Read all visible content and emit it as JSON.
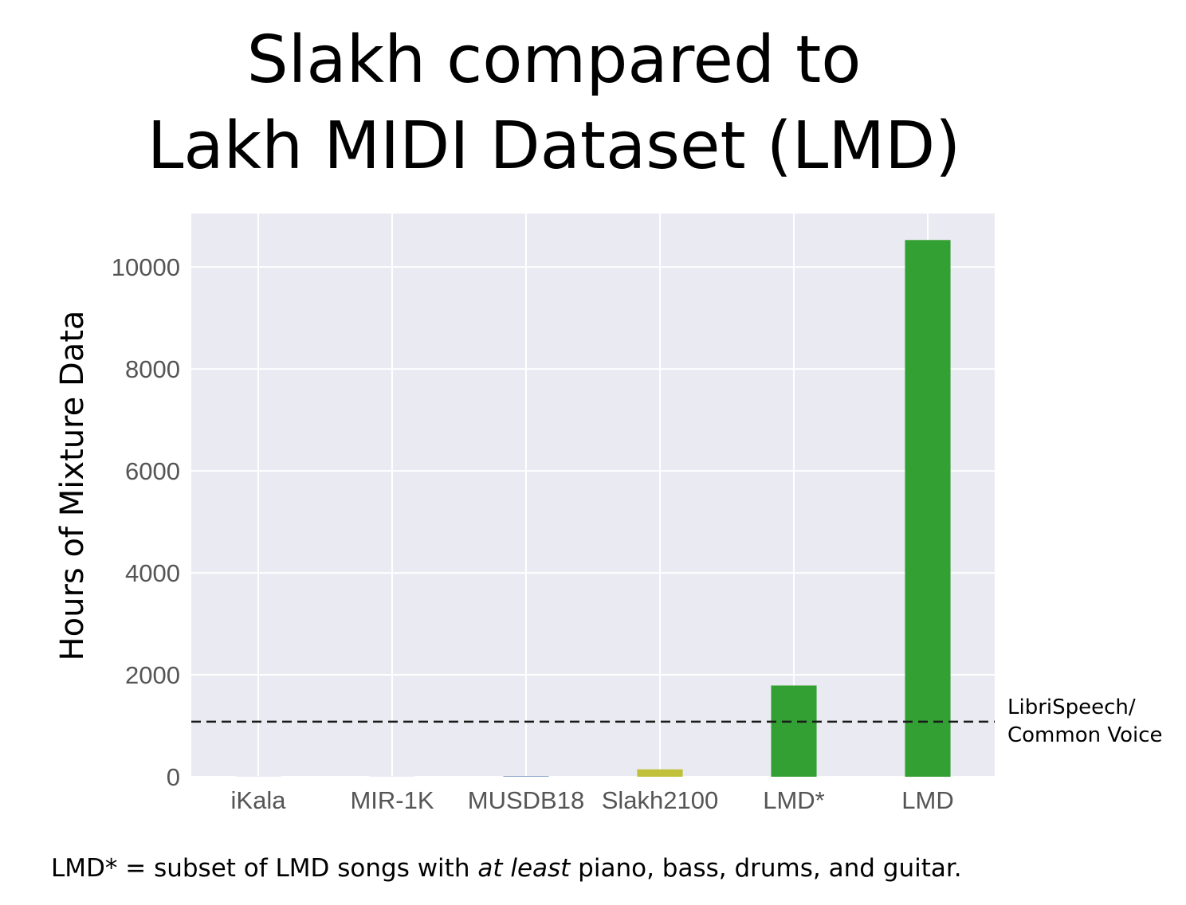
{
  "title_line1": "Slakh compared to",
  "title_line2": "Lakh MIDI Dataset (LMD)",
  "footnote": {
    "prefix": "LMD* = subset of LMD songs with ",
    "emphasis": "at least",
    "suffix": " piano, bass, drums, and guitar."
  },
  "chart_data": {
    "type": "bar",
    "title": "",
    "xlabel": "",
    "ylabel": "Hours of Mixture Data",
    "categories": [
      "iKala",
      "MIR-1K",
      "MUSDB18",
      "Slakh2100",
      "LMD*",
      "LMD"
    ],
    "values": [
      2,
      2,
      10,
      145,
      1790,
      10530
    ],
    "bar_colors": [
      "#4c72b0",
      "#4c72b0",
      "#4c72b0",
      "#c0c03a",
      "#33a033",
      "#33a033"
    ],
    "ylim": [
      0,
      11050
    ],
    "yticks": [
      0,
      2000,
      4000,
      6000,
      8000,
      10000
    ],
    "ytick_labels": [
      "0",
      "2000",
      "4000",
      "6000",
      "8000",
      "10000"
    ],
    "grid": true,
    "background": "#eaeaf2",
    "reference_line": {
      "value": 1080,
      "style": "dashed",
      "label_line1": "LibriSpeech/",
      "label_line2": "Common Voice"
    }
  }
}
